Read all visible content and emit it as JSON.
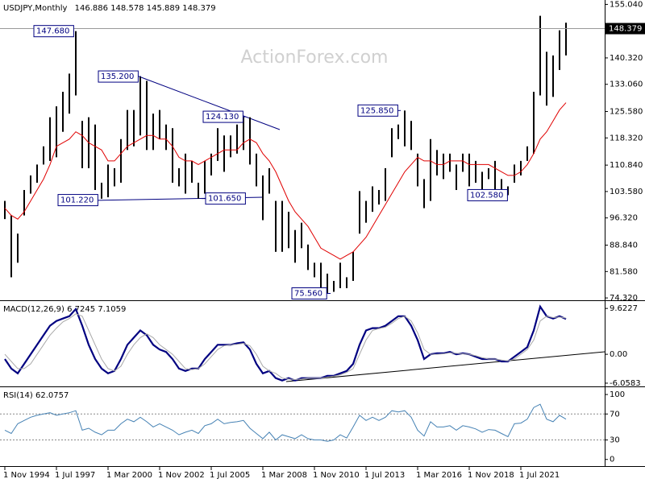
{
  "chart_data": [
    {
      "type": "ohlc",
      "title": "USDJPY,Monthly",
      "ohlc_readout": [
        146.886,
        148.578,
        145.889,
        148.379
      ],
      "watermark": "ActionForex.com",
      "categories": [
        "1 Nov 1994",
        null,
        null,
        null,
        null,
        null,
        null,
        null,
        "1 Jul 1997",
        null,
        null,
        null,
        null,
        null,
        null,
        null,
        "1 Mar 2000",
        null,
        null,
        null,
        null,
        null,
        null,
        null,
        "1 Nov 2002",
        null,
        null,
        null,
        null,
        null,
        null,
        null,
        "1 Jul 2005",
        null,
        null,
        null,
        null,
        null,
        null,
        null,
        "1 Mar 2008",
        null,
        null,
        null,
        null,
        null,
        null,
        null,
        "1 Nov 2010",
        null,
        null,
        null,
        null,
        null,
        null,
        null,
        "1 Jul 2013",
        null,
        null,
        null,
        null,
        null,
        null,
        null,
        "1 Mar 2016",
        null,
        null,
        null,
        null,
        null,
        null,
        null,
        "1 Nov 2018",
        null,
        null,
        null,
        null,
        null,
        null,
        null,
        "1 Jul 2021",
        null,
        null,
        null,
        null,
        null,
        null,
        null
      ],
      "high": [
        101,
        97,
        92,
        104,
        108,
        111,
        116,
        124,
        127,
        131,
        136,
        147.68,
        123,
        124,
        122,
        106,
        111,
        110,
        118,
        126,
        126,
        135.2,
        134,
        125,
        126,
        122,
        121,
        110,
        114,
        112,
        106,
        112,
        114,
        121,
        119,
        119,
        122,
        124.13,
        124,
        114,
        108,
        110,
        101,
        101,
        98,
        93,
        95,
        89,
        84,
        84,
        81,
        79,
        84,
        80,
        87,
        103.7,
        101,
        105,
        104,
        110,
        121,
        122,
        125.85,
        123,
        114,
        107,
        118,
        115,
        114,
        114,
        111,
        114,
        114,
        112,
        109,
        110,
        112,
        107,
        105,
        111,
        112,
        116,
        131,
        151.9,
        142,
        141,
        147.9,
        150
      ],
      "low": [
        96,
        80,
        84,
        97,
        103,
        106,
        111,
        112,
        113,
        120,
        125,
        130,
        110,
        110,
        104,
        101.6,
        102,
        105,
        106,
        115,
        116,
        119,
        115,
        115,
        118,
        115,
        106,
        105,
        103,
        106,
        101.65,
        103,
        108,
        112,
        109,
        113,
        114,
        115,
        111,
        105,
        95.7,
        103,
        87,
        87,
        88,
        84,
        88,
        82,
        80,
        76.5,
        75.56,
        76,
        77,
        77,
        79,
        92,
        95,
        98,
        100,
        101,
        113,
        118,
        116,
        115,
        105,
        99,
        101,
        108,
        107,
        109,
        104,
        109,
        105,
        106,
        104,
        107,
        101,
        104,
        102.58,
        106,
        108,
        112,
        114,
        130,
        127.2,
        129.6,
        137,
        141
      ],
      "color": "#000000",
      "ma": {
        "color": "#e00000",
        "values": [
          99,
          97,
          96,
          98,
          101,
          104,
          107,
          111,
          116,
          117,
          118,
          120,
          119,
          117,
          116,
          115,
          112,
          112,
          114,
          116,
          117,
          118,
          119,
          119,
          118,
          118,
          116,
          113,
          112,
          112,
          111,
          112,
          113,
          114,
          115,
          115,
          115,
          117,
          118,
          117,
          114,
          112,
          109,
          105,
          101,
          98,
          96,
          94,
          91,
          88,
          87,
          86,
          85,
          86,
          87,
          89,
          91,
          94,
          97,
          100,
          103,
          106,
          109,
          111,
          113,
          112,
          112,
          111,
          111,
          112,
          112,
          112,
          111,
          111,
          111,
          111,
          110,
          109,
          108,
          108,
          109,
          111,
          114,
          118,
          120,
          123,
          126,
          128
        ]
      },
      "annotations": [
        {
          "value": 147.68,
          "label": "147.680"
        },
        {
          "value": 135.2,
          "label": "135.200"
        },
        {
          "value": 124.13,
          "label": "124.130"
        },
        {
          "value": 125.85,
          "label": "125.850"
        },
        {
          "value": 101.22,
          "label": "101.220"
        },
        {
          "value": 101.65,
          "label": "101.650"
        },
        {
          "value": 75.56,
          "label": "75.560"
        },
        {
          "value": 102.58,
          "label": "102.580"
        }
      ],
      "last": 148.379,
      "ylim": [
        73.9,
        155.8
      ],
      "yticks": [
        {
          "value": 74.32,
          "label": "74.320"
        },
        {
          "value": 81.58,
          "label": "81.580"
        },
        {
          "value": 88.84,
          "label": "88.840"
        },
        {
          "value": 96.32,
          "label": "96.320"
        },
        {
          "value": 103.58,
          "label": "103.580"
        },
        {
          "value": 110.84,
          "label": "110.840"
        },
        {
          "value": 118.32,
          "label": "118.320"
        },
        {
          "value": 125.58,
          "label": "125.580"
        },
        {
          "value": 133.06,
          "label": "133.060"
        },
        {
          "value": 140.32,
          "label": "140.320"
        },
        {
          "value": 155.04,
          "label": "155.040"
        }
      ]
    },
    {
      "type": "line",
      "title": "MACD(12,26,9)",
      "readout": [
        6.7245,
        7.1059
      ],
      "series": [
        {
          "color": "#000080",
          "values": [
            -1,
            -3,
            -4,
            -2,
            0,
            2,
            4,
            6,
            7,
            7.5,
            8,
            9.5,
            6,
            2,
            -1,
            -3,
            -4,
            -3.5,
            -1,
            2,
            3.5,
            5,
            4,
            2,
            1,
            0.5,
            -1,
            -3,
            -3.5,
            -3,
            -3,
            -1,
            0.5,
            2,
            2,
            2,
            2.3,
            2.5,
            1,
            -2,
            -4,
            -3.5,
            -5,
            -5.5,
            -5,
            -5.5,
            -5,
            -5,
            -5,
            -5,
            -4.5,
            -4.5,
            -4,
            -3.5,
            -2,
            2,
            5,
            5.5,
            5.5,
            6,
            7,
            8,
            8,
            6,
            3,
            -1,
            0,
            0.2,
            0.2,
            0.5,
            0,
            0.2,
            0,
            -0.5,
            -1,
            -1,
            -1,
            -1.5,
            -1.5,
            -0.5,
            0.5,
            1.5,
            5,
            10,
            8,
            7.5,
            8,
            7.4
          ]
        },
        {
          "color": "#a9a9a9",
          "values": [
            0,
            -1.5,
            -3,
            -3,
            -2,
            0,
            2,
            4,
            5.5,
            6.8,
            7.5,
            8.5,
            8,
            5,
            2,
            -1,
            -3,
            -3.5,
            -2.5,
            0,
            2,
            3.5,
            4.3,
            3.5,
            2,
            1,
            0,
            -1.5,
            -3,
            -3.2,
            -3,
            -2,
            -0.5,
            1,
            1.8,
            2,
            2.1,
            2.3,
            1.8,
            0,
            -2.5,
            -3.5,
            -4,
            -5,
            -5.2,
            -5.3,
            -5.2,
            -5,
            -5,
            -5,
            -4.8,
            -4.6,
            -4.3,
            -3.8,
            -3,
            0,
            3,
            5,
            5.4,
            5.7,
            6.5,
            7.5,
            8,
            7,
            4.5,
            1,
            0,
            0,
            0.1,
            0.3,
            0.2,
            0.1,
            0,
            -0.3,
            -0.7,
            -1,
            -1,
            -1.2,
            -1.4,
            -1,
            0,
            1,
            3,
            7,
            8,
            7.7,
            7.8,
            7.6
          ]
        }
      ],
      "ylim": [
        -6.4,
        11
      ],
      "yticks": [
        -6.0583,
        {
          "value": 0,
          "label": "0.00"
        },
        9.6227
      ]
    },
    {
      "type": "line",
      "title": "RSI(14)",
      "readout": [
        62.0757
      ],
      "series": [
        {
          "color": "#4682b4",
          "values": [
            45,
            40,
            55,
            60,
            65,
            68,
            70,
            72,
            68,
            70,
            72,
            75,
            45,
            48,
            42,
            38,
            45,
            45,
            55,
            62,
            58,
            65,
            58,
            50,
            55,
            50,
            45,
            38,
            42,
            45,
            40,
            52,
            55,
            62,
            55,
            57,
            58,
            60,
            48,
            40,
            32,
            42,
            30,
            38,
            35,
            32,
            38,
            32,
            30,
            30,
            28,
            30,
            38,
            33,
            50,
            68,
            60,
            65,
            60,
            65,
            75,
            73,
            75,
            65,
            45,
            36,
            58,
            50,
            50,
            52,
            45,
            52,
            50,
            47,
            42,
            46,
            45,
            40,
            35,
            55,
            56,
            62,
            80,
            85,
            62,
            58,
            68,
            62
          ]
        }
      ],
      "ylim": [
        -9,
        110
      ],
      "yticks": [
        0,
        30,
        70,
        100
      ]
    }
  ]
}
